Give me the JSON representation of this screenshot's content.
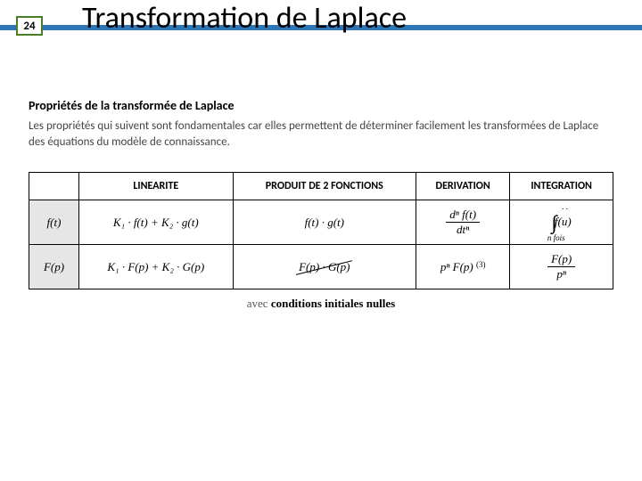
{
  "page_number": "24",
  "title": "Transformation de Laplace",
  "accent_color": "#2e75b6",
  "accent_border": "#4a7c2a",
  "section_title": "Propriétés de la transformée de Laplace",
  "section_desc": "Les propriétés qui suivent sont fondamentales car elles permettent de déterminer facilement les transformées de Laplace des équations du modèle de connaissance.",
  "columns": {
    "c1": "LINEARITE",
    "c2": "PRODUIT DE 2 FONCTIONS",
    "c3": "DERIVATION",
    "c4": "INTEGRATION"
  },
  "rows": {
    "r1": "f(t)",
    "r2": "F(p)"
  },
  "cells": {
    "lin_t": "K₁ · f(t) + K₂ · g(t)",
    "lin_p": "K₁ · F(p) + K₂ · G(p)",
    "prod_t": "f(t) · g(t)",
    "prod_p": "F(p) · G(p)",
    "deriv_t_num": "dⁿ f(t)",
    "deriv_t_den": "dtⁿ",
    "deriv_p": "pⁿ F(p)",
    "deriv_ref": "(3)",
    "int_symbol": "∫∫∫",
    "int_arg": " f(u)",
    "int_dots": ". .",
    "int_nfois": "n fois",
    "int_p_num": "F(p)",
    "int_p_den": "pⁿ"
  },
  "caption_prefix": "avec ",
  "caption_bold": "conditions initiales nulles"
}
